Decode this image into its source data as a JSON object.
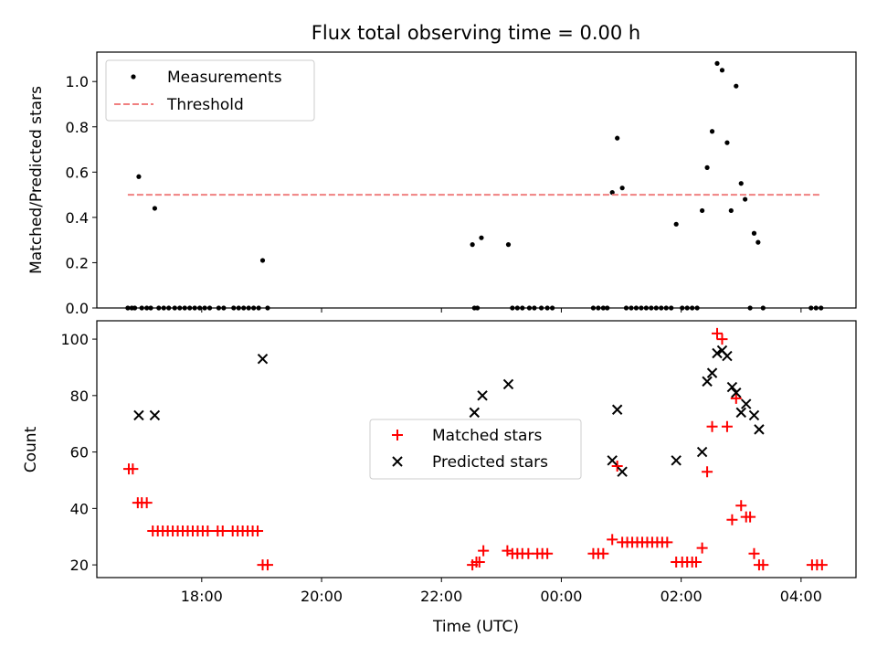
{
  "chart_data": [
    {
      "type": "scatter",
      "title": "Flux total observing time = 0.00 h",
      "ylabel": "Matched/Predicted stars",
      "xlabel": "",
      "xlim": [
        "16:15",
        "04:55"
      ],
      "ylim": [
        0,
        1.13
      ],
      "yticks": [
        0.0,
        0.2,
        0.4,
        0.6,
        0.8,
        1.0
      ],
      "ytick_labels": [
        "0.0",
        "0.2",
        "0.4",
        "0.6",
        "0.8",
        "1.0"
      ],
      "legend_position": "upper-left",
      "series": [
        {
          "name": "Measurements",
          "marker": "dot",
          "color": "#000000",
          "points": [
            [
              "16:46",
              0
            ],
            [
              "16:50",
              0
            ],
            [
              "16:53",
              0
            ],
            [
              "16:57",
              0.58
            ],
            [
              "17:00",
              0
            ],
            [
              "17:05",
              0
            ],
            [
              "17:09",
              0
            ],
            [
              "17:13",
              0.44
            ],
            [
              "17:17",
              0
            ],
            [
              "17:22",
              0
            ],
            [
              "17:27",
              0
            ],
            [
              "17:33",
              0
            ],
            [
              "17:38",
              0
            ],
            [
              "17:43",
              0
            ],
            [
              "17:48",
              0
            ],
            [
              "17:53",
              0
            ],
            [
              "17:58",
              0
            ],
            [
              "18:03",
              0
            ],
            [
              "18:08",
              0
            ],
            [
              "18:17",
              0
            ],
            [
              "18:22",
              0
            ],
            [
              "18:32",
              0
            ],
            [
              "18:37",
              0
            ],
            [
              "18:42",
              0
            ],
            [
              "18:47",
              0
            ],
            [
              "18:52",
              0
            ],
            [
              "18:57",
              0
            ],
            [
              "19:01",
              0.21
            ],
            [
              "19:06",
              0
            ],
            [
              "22:31",
              0.28
            ],
            [
              "22:33",
              0
            ],
            [
              "22:36",
              0
            ],
            [
              "22:40",
              0.31
            ],
            [
              "23:07",
              0.28
            ],
            [
              "23:11",
              0
            ],
            [
              "23:16",
              0
            ],
            [
              "23:21",
              0
            ],
            [
              "23:28",
              0
            ],
            [
              "23:33",
              0
            ],
            [
              "23:40",
              0
            ],
            [
              "23:46",
              0
            ],
            [
              "23:51",
              0
            ],
            [
              "00:32",
              0
            ],
            [
              "00:37",
              0
            ],
            [
              "00:42",
              0
            ],
            [
              "00:46",
              0
            ],
            [
              "00:51",
              0.51
            ],
            [
              "00:56",
              0.75
            ],
            [
              "01:01",
              0.53
            ],
            [
              "01:05",
              0
            ],
            [
              "01:10",
              0
            ],
            [
              "01:15",
              0
            ],
            [
              "01:20",
              0
            ],
            [
              "01:25",
              0
            ],
            [
              "01:30",
              0
            ],
            [
              "01:35",
              0
            ],
            [
              "01:40",
              0
            ],
            [
              "01:45",
              0
            ],
            [
              "01:50",
              0
            ],
            [
              "01:55",
              0.37
            ],
            [
              "02:01",
              0
            ],
            [
              "02:06",
              0
            ],
            [
              "02:11",
              0
            ],
            [
              "02:16",
              0
            ],
            [
              "02:21",
              0.43
            ],
            [
              "02:26",
              0.62
            ],
            [
              "02:31",
              0.78
            ],
            [
              "02:36",
              1.08
            ],
            [
              "02:41",
              1.05
            ],
            [
              "02:46",
              0.73
            ],
            [
              "02:50",
              0.43
            ],
            [
              "02:55",
              0.98
            ],
            [
              "03:00",
              0.55
            ],
            [
              "03:04",
              0.48
            ],
            [
              "03:09",
              0
            ],
            [
              "03:13",
              0.33
            ],
            [
              "03:17",
              0.29
            ],
            [
              "03:22",
              0
            ],
            [
              "04:10",
              0
            ],
            [
              "04:15",
              0
            ],
            [
              "04:20",
              0
            ]
          ]
        },
        {
          "name": "Threshold",
          "marker": "dashed-line",
          "color": "#f08080",
          "points": [
            [
              "16:46",
              0.5
            ],
            [
              "04:20",
              0.5
            ]
          ]
        }
      ]
    },
    {
      "type": "scatter",
      "title": "",
      "ylabel": "Count",
      "xlabel": "Time (UTC)",
      "xlim": [
        "16:15",
        "04:55"
      ],
      "ylim": [
        15.5,
        106.5
      ],
      "yticks": [
        20,
        40,
        60,
        80,
        100
      ],
      "ytick_labels": [
        "20",
        "40",
        "60",
        "80",
        "100"
      ],
      "xticks": [
        "18:00",
        "20:00",
        "22:00",
        "00:00",
        "02:00",
        "04:00"
      ],
      "xtick_labels": [
        "18:00",
        "20:00",
        "22:00",
        "00:00",
        "02:00",
        "04:00"
      ],
      "legend_position": "center",
      "series": [
        {
          "name": "Matched stars",
          "marker": "plus",
          "color": "#ff0000",
          "points": [
            [
              "16:47",
              54
            ],
            [
              "16:51",
              54
            ],
            [
              "16:56",
              42
            ],
            [
              "17:00",
              42
            ],
            [
              "17:05",
              42
            ],
            [
              "17:11",
              32
            ],
            [
              "17:16",
              32
            ],
            [
              "17:21",
              32
            ],
            [
              "17:26",
              32
            ],
            [
              "17:31",
              32
            ],
            [
              "17:36",
              32
            ],
            [
              "17:41",
              32
            ],
            [
              "17:46",
              32
            ],
            [
              "17:51",
              32
            ],
            [
              "17:56",
              32
            ],
            [
              "18:01",
              32
            ],
            [
              "18:06",
              32
            ],
            [
              "18:16",
              32
            ],
            [
              "18:21",
              32
            ],
            [
              "18:31",
              32
            ],
            [
              "18:36",
              32
            ],
            [
              "18:41",
              32
            ],
            [
              "18:46",
              32
            ],
            [
              "18:51",
              32
            ],
            [
              "18:56",
              32
            ],
            [
              "19:01",
              20
            ],
            [
              "19:06",
              20
            ],
            [
              "22:31",
              20
            ],
            [
              "22:35",
              21
            ],
            [
              "22:38",
              21
            ],
            [
              "22:42",
              25
            ],
            [
              "23:06",
              25
            ],
            [
              "23:11",
              24
            ],
            [
              "23:16",
              24
            ],
            [
              "23:21",
              24
            ],
            [
              "23:27",
              24
            ],
            [
              "23:36",
              24
            ],
            [
              "23:41",
              24
            ],
            [
              "23:46",
              24
            ],
            [
              "00:32",
              24
            ],
            [
              "00:37",
              24
            ],
            [
              "00:42",
              24
            ],
            [
              "00:51",
              29
            ],
            [
              "00:56",
              55
            ],
            [
              "01:01",
              28
            ],
            [
              "01:06",
              28
            ],
            [
              "01:11",
              28
            ],
            [
              "01:16",
              28
            ],
            [
              "01:21",
              28
            ],
            [
              "01:26",
              28
            ],
            [
              "01:31",
              28
            ],
            [
              "01:36",
              28
            ],
            [
              "01:41",
              28
            ],
            [
              "01:46",
              28
            ],
            [
              "01:55",
              21
            ],
            [
              "02:01",
              21
            ],
            [
              "02:06",
              21
            ],
            [
              "02:11",
              21
            ],
            [
              "02:15",
              21
            ],
            [
              "02:21",
              26
            ],
            [
              "02:26",
              53
            ],
            [
              "02:31",
              69
            ],
            [
              "02:36",
              102
            ],
            [
              "02:41",
              100
            ],
            [
              "02:46",
              69
            ],
            [
              "02:51",
              36
            ],
            [
              "02:55",
              79
            ],
            [
              "03:00",
              41
            ],
            [
              "03:05",
              37
            ],
            [
              "03:09",
              37
            ],
            [
              "03:13",
              24
            ],
            [
              "03:18",
              20
            ],
            [
              "03:22",
              20
            ],
            [
              "04:11",
              20
            ],
            [
              "04:16",
              20
            ],
            [
              "04:21",
              20
            ]
          ]
        },
        {
          "name": "Predicted stars",
          "marker": "x",
          "color": "#000000",
          "points": [
            [
              "16:57",
              73
            ],
            [
              "17:13",
              73
            ],
            [
              "19:01",
              93
            ],
            [
              "22:33",
              74
            ],
            [
              "22:41",
              80
            ],
            [
              "23:07",
              84
            ],
            [
              "00:51",
              57
            ],
            [
              "00:56",
              75
            ],
            [
              "01:01",
              53
            ],
            [
              "01:55",
              57
            ],
            [
              "02:21",
              60
            ],
            [
              "02:26",
              85
            ],
            [
              "02:31",
              88
            ],
            [
              "02:36",
              95
            ],
            [
              "02:41",
              96
            ],
            [
              "02:46",
              94
            ],
            [
              "02:51",
              83
            ],
            [
              "02:55",
              81
            ],
            [
              "03:00",
              74
            ],
            [
              "03:05",
              77
            ],
            [
              "03:13",
              73
            ],
            [
              "03:18",
              68
            ]
          ]
        }
      ]
    }
  ]
}
